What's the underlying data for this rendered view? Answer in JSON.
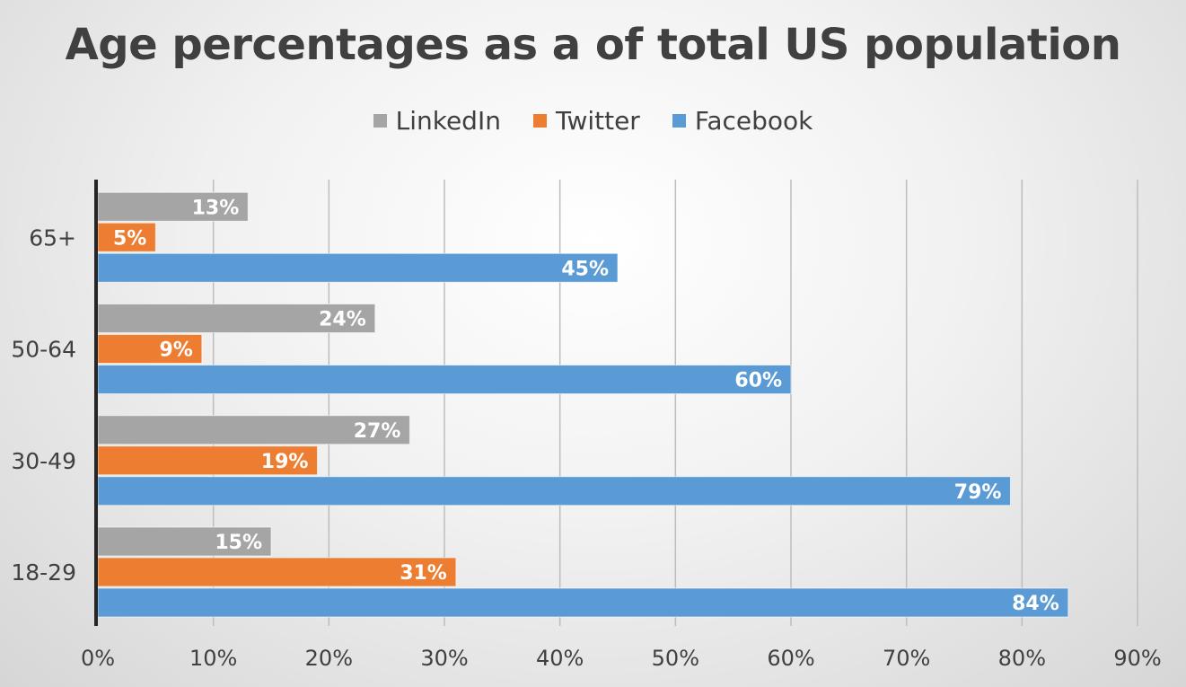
{
  "chart_data": {
    "type": "bar",
    "orientation": "horizontal",
    "title": "Age percentages as a of total US population",
    "categories": [
      "18-29",
      "30-49",
      "50-64",
      "65+"
    ],
    "series": [
      {
        "name": "LinkedIn",
        "color": "#a5a5a5",
        "values": [
          15,
          27,
          24,
          13
        ]
      },
      {
        "name": "Twitter",
        "color": "#ed7d31",
        "values": [
          31,
          19,
          9,
          5
        ]
      },
      {
        "name": "Facebook",
        "color": "#5b9bd5",
        "values": [
          84,
          79,
          60,
          45
        ]
      }
    ],
    "legend_order": [
      "LinkedIn",
      "Twitter",
      "Facebook"
    ],
    "legend_position": "top",
    "xlim": [
      0,
      90
    ],
    "x_ticks": [
      "0%",
      "10%",
      "20%",
      "30%",
      "40%",
      "50%",
      "60%",
      "70%",
      "80%",
      "90%"
    ],
    "x_tick_values": [
      0,
      10,
      20,
      30,
      40,
      50,
      60,
      70,
      80,
      90
    ],
    "value_suffix": "%",
    "grid": true
  }
}
